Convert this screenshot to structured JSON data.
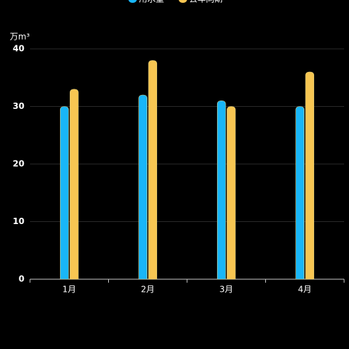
{
  "chart_data": {
    "type": "bar",
    "y_label": "万m³",
    "categories": [
      "1月",
      "2月",
      "3月",
      "4月"
    ],
    "series": [
      {
        "name": "用水量",
        "color": "#19b6f7",
        "values": [
          30,
          32,
          31,
          30
        ]
      },
      {
        "name": "去年同期",
        "color": "#f7c652",
        "values": [
          33,
          38,
          30,
          36
        ]
      }
    ],
    "ylim": [
      0,
      40
    ],
    "yticks": [
      0,
      10,
      20,
      30,
      40
    ],
    "grid": true
  }
}
